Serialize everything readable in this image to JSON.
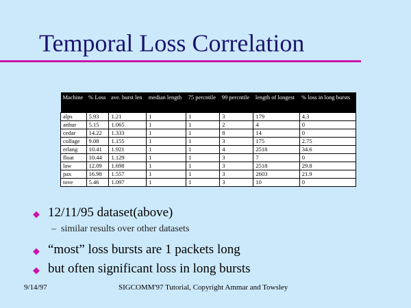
{
  "slide": {
    "title": "Temporal Loss Correlation"
  },
  "table": {
    "headers": [
      "Machine",
      "% Loss",
      "ave. burst len",
      "median length",
      "75 percntile",
      "99 percntile",
      "length of longest",
      "% loss in long bursts"
    ],
    "rows": [
      [
        "alps",
        "5.93",
        "1.21",
        "1",
        "1",
        "3",
        "179",
        "4.3"
      ],
      [
        "anhur",
        "5.15",
        "1.065",
        "1",
        "1",
        "2",
        "4",
        "0"
      ],
      [
        "cedar",
        "14.22",
        "1.333",
        "1",
        "1",
        "8",
        "14",
        "0"
      ],
      [
        "collage",
        "9.08",
        "1.155",
        "1",
        "1",
        "3",
        "175",
        "2.75"
      ],
      [
        "erlang",
        "10.41",
        "1.921",
        "1",
        "1",
        "4",
        "2518",
        "34.6"
      ],
      [
        "float",
        "10.44",
        "1.129",
        "1",
        "1",
        "3",
        "7",
        "0"
      ],
      [
        "law",
        "12.09",
        "1.698",
        "1",
        "1",
        "3",
        "2518",
        "29.8"
      ],
      [
        "pax",
        "16.98",
        "1.557",
        "1",
        "1",
        "3",
        "2603",
        "21.9"
      ],
      [
        "tove",
        "5.46",
        "1.097",
        "1",
        "1",
        "3",
        "10",
        "0"
      ]
    ]
  },
  "bullets": [
    {
      "text": "12/11/95 dataset(above)",
      "sub": "similar results over other datasets"
    },
    {
      "text": "“most” loss bursts are 1  packets long",
      "sub": ""
    },
    {
      "text": "but often significant loss in long bursts",
      "sub": ""
    }
  ],
  "footer": {
    "date": "9/14/97",
    "credit": "SIGCOMM'97 Tutorial, Copyright Ammar and Towsley"
  },
  "colors": {
    "background": "#cce9fb",
    "title": "#1a1470",
    "accent": "#cc11aa"
  }
}
